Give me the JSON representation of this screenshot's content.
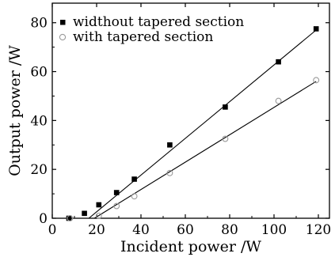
{
  "chart_data": {
    "type": "scatter",
    "title": "",
    "xlabel": "Incident power /W",
    "ylabel": "Output power /W",
    "xlim": [
      0,
      125
    ],
    "ylim": [
      0,
      88
    ],
    "xticks": [
      0,
      20,
      40,
      60,
      80,
      100,
      120
    ],
    "yticks": [
      0,
      20,
      40,
      60,
      80
    ],
    "grid": false,
    "legend_position": "top-left",
    "series": [
      {
        "name": "widthout tapered section",
        "marker": "filled-square",
        "color": "#000000",
        "x": [
          7.5,
          14.5,
          21,
          29,
          37,
          53,
          78,
          102,
          119
        ],
        "y": [
          0,
          2,
          5.5,
          10.5,
          16,
          30,
          45.5,
          64,
          77.5
        ],
        "fit": {
          "x": [
            16.5,
            119
          ],
          "y": [
            0,
            77
          ]
        }
      },
      {
        "name": "with tapered section",
        "marker": "open-circle",
        "color": "#9a9a9a",
        "x": [
          8,
          21,
          29,
          37,
          53,
          78,
          102,
          119
        ],
        "y": [
          0,
          1,
          5,
          9,
          18.5,
          32.5,
          48,
          56.5
        ],
        "fit": {
          "x": [
            19,
            119
          ],
          "y": [
            0,
            56
          ]
        }
      }
    ]
  }
}
